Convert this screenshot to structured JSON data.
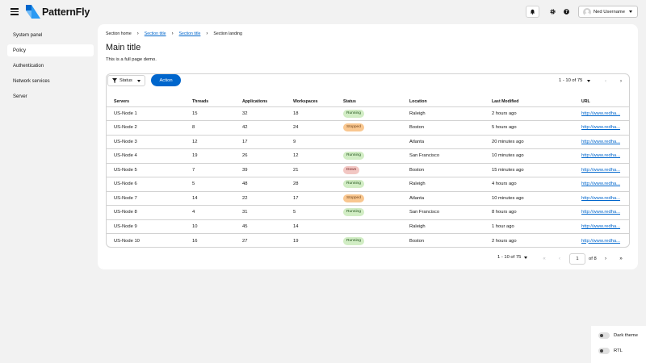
{
  "brand": {
    "name": "PatternFly"
  },
  "header": {
    "user_name": "Ned Username"
  },
  "sidebar": {
    "items": [
      {
        "label": "System panel",
        "active": false
      },
      {
        "label": "Policy",
        "active": true
      },
      {
        "label": "Authentication",
        "active": false
      },
      {
        "label": "Network services",
        "active": false
      },
      {
        "label": "Server",
        "active": false
      }
    ]
  },
  "breadcrumb": {
    "items": [
      "Section home",
      "Section title",
      "Section title",
      "Section landing"
    ]
  },
  "page": {
    "title": "Main title",
    "description": "This is a full page demo."
  },
  "toolbar": {
    "filter_label": "Status",
    "action_label": "Action",
    "pagination_text": "1 - 10 of 75"
  },
  "table": {
    "columns": [
      "Servers",
      "Threads",
      "Applications",
      "Workspaces",
      "Status",
      "Location",
      "Last Modified",
      "URL"
    ],
    "rows": [
      {
        "server": "US-Node 1",
        "threads": "15",
        "applications": "32",
        "workspaces": "18",
        "status": "Running",
        "location": "Raleigh",
        "modified": "2 hours ago",
        "url": "http://www.redha..."
      },
      {
        "server": "US-Node 2",
        "threads": "8",
        "applications": "42",
        "workspaces": "24",
        "status": "Stopped",
        "location": "Boston",
        "modified": "5 hours ago",
        "url": "http://www.redha..."
      },
      {
        "server": "US-Node 3",
        "threads": "12",
        "applications": "17",
        "workspaces": "9",
        "status": "",
        "location": "Atlanta",
        "modified": "20 minutes ago",
        "url": "http://www.redha..."
      },
      {
        "server": "US-Node 4",
        "threads": "19",
        "applications": "26",
        "workspaces": "12",
        "status": "Running",
        "location": "San Francisco",
        "modified": "10 minutes ago",
        "url": "http://www.redha..."
      },
      {
        "server": "US-Node 5",
        "threads": "7",
        "applications": "39",
        "workspaces": "21",
        "status": "Down",
        "location": "Boston",
        "modified": "15 minutes ago",
        "url": "http://www.redha..."
      },
      {
        "server": "US-Node 6",
        "threads": "5",
        "applications": "48",
        "workspaces": "28",
        "status": "Running",
        "location": "Raleigh",
        "modified": "4 hours ago",
        "url": "http://www.redha..."
      },
      {
        "server": "US-Node 7",
        "threads": "14",
        "applications": "22",
        "workspaces": "17",
        "status": "Stopped",
        "location": "Atlanta",
        "modified": "10 minutes ago",
        "url": "http://www.redha..."
      },
      {
        "server": "US-Node 8",
        "threads": "4",
        "applications": "31",
        "workspaces": "5",
        "status": "Running",
        "location": "San Francisco",
        "modified": "8 hours ago",
        "url": "http://www.redha..."
      },
      {
        "server": "US-Node 9",
        "threads": "10",
        "applications": "45",
        "workspaces": "14",
        "status": "",
        "location": "Raleigh",
        "modified": "1 hour ago",
        "url": "http://www.redha..."
      },
      {
        "server": "US-Node 10",
        "threads": "16",
        "applications": "27",
        "workspaces": "19",
        "status": "Running",
        "location": "Boston",
        "modified": "2 hours ago",
        "url": "http://www.redha..."
      }
    ]
  },
  "pagination": {
    "range_text": "1 - 10 of 75",
    "current_page": "1",
    "of_pages": "of 8"
  },
  "theme_panel": {
    "dark_theme_label": "Dark theme",
    "rtl_label": "RTL"
  },
  "colors": {
    "accent": "#0066cc",
    "running": "#d1edc4",
    "stopped": "#f9c790",
    "down": "#f2c7c3"
  }
}
